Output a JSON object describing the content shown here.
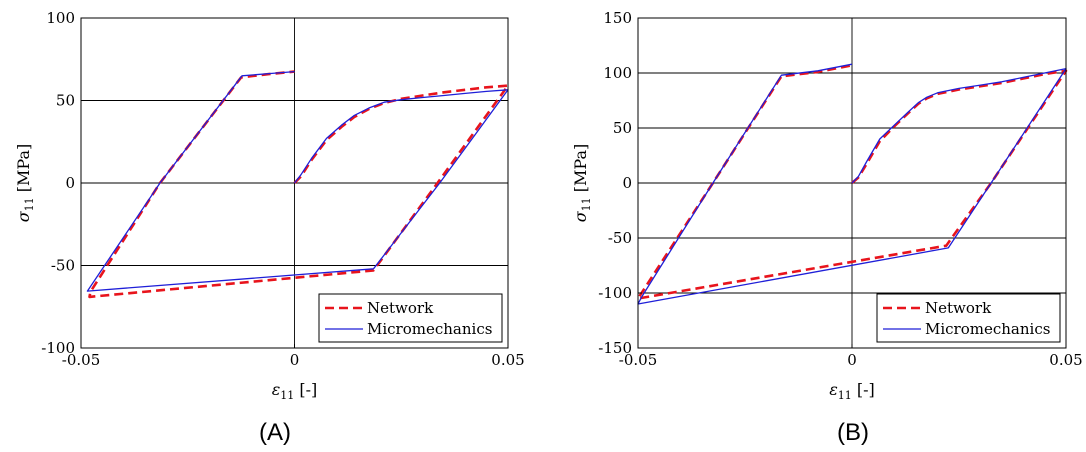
{
  "chart_data": [
    {
      "type": "line",
      "panel_label": "(A)",
      "xlabel_symbol": "ε",
      "xlabel_sub": "11",
      "xlabel_unit": "[-]",
      "ylabel_symbol": "σ",
      "ylabel_sub": "11",
      "ylabel_unit": "[MPa]",
      "xlim": [
        -0.05,
        0.05
      ],
      "ylim": [
        -100,
        100
      ],
      "x_ticks": [
        -0.05,
        0,
        0.05
      ],
      "x_tick_labels": [
        "-0.05",
        "0",
        "0.05"
      ],
      "y_ticks": [
        -100,
        -50,
        0,
        50,
        100
      ],
      "y_tick_labels": [
        "-100",
        "-50",
        "0",
        "50",
        "100"
      ],
      "grid": "horizontal at y ticks, vertical at x = 0",
      "legend_position": "bottom-right",
      "series": [
        {
          "name": "Network",
          "color": "#e8141c",
          "style": "dashed",
          "points": [
            [
              0,
              0
            ],
            [
              0.0015,
              4
            ],
            [
              0.004,
              14
            ],
            [
              0.0075,
              26
            ],
            [
              0.011,
              34
            ],
            [
              0.014,
              40
            ],
            [
              0.0175,
              45
            ],
            [
              0.021,
              48.5
            ],
            [
              0.025,
              51
            ],
            [
              0.03,
              53
            ],
            [
              0.035,
              55
            ],
            [
              0.04,
              56.5
            ],
            [
              0.045,
              58
            ],
            [
              0.05,
              59
            ],
            [
              0.0335,
              0
            ],
            [
              0.0185,
              -53
            ],
            [
              -0.048,
              -69
            ],
            [
              -0.0478,
              -66
            ],
            [
              -0.0315,
              0
            ],
            [
              -0.0125,
              64
            ],
            [
              -0.006,
              66
            ],
            [
              0,
              67.5
            ]
          ]
        },
        {
          "name": "Micromechanics",
          "color": "#1f1fd8",
          "style": "solid",
          "points": [
            [
              0,
              0
            ],
            [
              0.0015,
              5
            ],
            [
              0.004,
              15
            ],
            [
              0.0075,
              27
            ],
            [
              0.011,
              35
            ],
            [
              0.014,
              41
            ],
            [
              0.0175,
              45.5
            ],
            [
              0.021,
              49
            ],
            [
              0.025,
              50.5
            ],
            [
              0.03,
              51.8
            ],
            [
              0.035,
              53
            ],
            [
              0.04,
              54.3
            ],
            [
              0.045,
              55.5
            ],
            [
              0.05,
              56.5
            ],
            [
              0.034,
              0
            ],
            [
              0.0185,
              -52
            ],
            [
              -0.0485,
              -65.5
            ],
            [
              -0.0315,
              0
            ],
            [
              -0.0123,
              65
            ],
            [
              -0.006,
              66.3
            ],
            [
              0,
              67.5
            ]
          ]
        }
      ]
    },
    {
      "type": "line",
      "panel_label": "(B)",
      "xlabel_symbol": "ε",
      "xlabel_sub": "11",
      "xlabel_unit": "[-]",
      "ylabel_symbol": "σ",
      "ylabel_sub": "11",
      "ylabel_unit": "[MPa]",
      "xlim": [
        -0.05,
        0.05
      ],
      "ylim": [
        -150,
        150
      ],
      "x_ticks": [
        -0.05,
        0,
        0.05
      ],
      "x_tick_labels": [
        "-0.05",
        "0",
        "0.05"
      ],
      "y_ticks": [
        -150,
        -100,
        -50,
        0,
        50,
        100,
        150
      ],
      "y_tick_labels": [
        "-150",
        "-100",
        "-50",
        "0",
        "50",
        "100",
        "150"
      ],
      "grid": "horizontal at y ticks, vertical at x = 0",
      "legend_position": "bottom-right",
      "series": [
        {
          "name": "Network",
          "color": "#e8141c",
          "style": "dashed",
          "points": [
            [
              0,
              0
            ],
            [
              0.0015,
              5
            ],
            [
              0.0035,
              18
            ],
            [
              0.0065,
              38
            ],
            [
              0.01,
              52
            ],
            [
              0.013,
              63
            ],
            [
              0.0155,
              72
            ],
            [
              0.0175,
              77
            ],
            [
              0.02,
              81
            ],
            [
              0.025,
              85
            ],
            [
              0.03,
              88
            ],
            [
              0.035,
              91
            ],
            [
              0.04,
              95
            ],
            [
              0.045,
              99
            ],
            [
              0.05,
              102
            ],
            [
              0.0325,
              0
            ],
            [
              0.022,
              -57
            ],
            [
              -0.05,
              -105
            ],
            [
              -0.0325,
              0
            ],
            [
              -0.0165,
              97
            ],
            [
              -0.008,
              101
            ],
            [
              0,
              107
            ]
          ]
        },
        {
          "name": "Micromechanics",
          "color": "#1f1fd8",
          "style": "solid",
          "points": [
            [
              0,
              0
            ],
            [
              0.0015,
              6
            ],
            [
              0.0035,
              20
            ],
            [
              0.0065,
              40
            ],
            [
              0.01,
              53
            ],
            [
              0.013,
              64
            ],
            [
              0.0155,
              73
            ],
            [
              0.0175,
              78
            ],
            [
              0.02,
              82
            ],
            [
              0.025,
              86
            ],
            [
              0.03,
              89
            ],
            [
              0.035,
              92
            ],
            [
              0.04,
              96
            ],
            [
              0.045,
              100
            ],
            [
              0.05,
              104
            ],
            [
              0.0325,
              0
            ],
            [
              0.0225,
              -59
            ],
            [
              -0.05,
              -110
            ],
            [
              -0.0492,
              -104
            ],
            [
              -0.0325,
              0
            ],
            [
              -0.0165,
              98
            ],
            [
              -0.008,
              102
            ],
            [
              0,
              108
            ]
          ]
        }
      ]
    }
  ]
}
